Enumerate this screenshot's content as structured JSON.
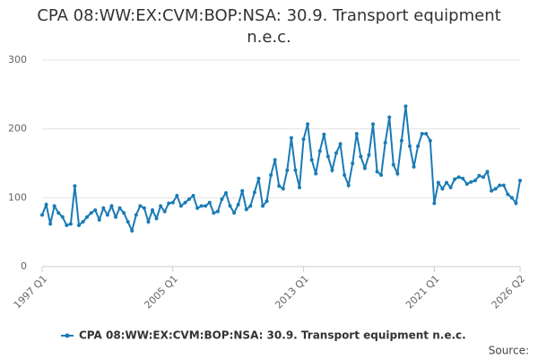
{
  "chart_data": {
    "type": "line",
    "title": "CPA 08:WW:EX:CVM:BOP:NSA: 30.9. Transport equipment n.e.c.",
    "source_label": "Source:",
    "categories": [
      "1997 Q1",
      null,
      null,
      null,
      null,
      null,
      null,
      null,
      null,
      null,
      null,
      null,
      null,
      null,
      null,
      null,
      null,
      null,
      null,
      null,
      null,
      null,
      null,
      null,
      null,
      null,
      null,
      null,
      null,
      null,
      null,
      null,
      "2005 Q1",
      null,
      null,
      null,
      null,
      null,
      null,
      null,
      null,
      null,
      null,
      null,
      null,
      null,
      null,
      null,
      null,
      null,
      null,
      null,
      null,
      null,
      null,
      null,
      null,
      null,
      null,
      null,
      null,
      null,
      null,
      null,
      "2013 Q1",
      null,
      null,
      null,
      null,
      null,
      null,
      null,
      null,
      null,
      null,
      null,
      null,
      null,
      null,
      null,
      null,
      null,
      null,
      null,
      null,
      null,
      null,
      null,
      null,
      null,
      null,
      null,
      null,
      null,
      null,
      null,
      "2021 Q1",
      null,
      null,
      null,
      null,
      null,
      null,
      null,
      null,
      null,
      null,
      null,
      null,
      null,
      null,
      null,
      null,
      null,
      null,
      null,
      null,
      "2026 Q2"
    ],
    "series": [
      {
        "name": "CPA 08:WW:EX:CVM:BOP:NSA: 30.9. Transport equipment n.e.c.",
        "color": "#1a7bb5",
        "values": [
          75,
          90,
          62,
          88,
          78,
          72,
          60,
          62,
          117,
          60,
          65,
          72,
          78,
          82,
          68,
          85,
          75,
          88,
          72,
          85,
          78,
          65,
          52,
          75,
          88,
          85,
          65,
          82,
          70,
          88,
          80,
          92,
          93,
          103,
          88,
          93,
          98,
          103,
          85,
          88,
          88,
          93,
          78,
          80,
          98,
          107,
          88,
          78,
          90,
          110,
          83,
          88,
          108,
          128,
          88,
          95,
          133,
          155,
          117,
          113,
          140,
          187,
          140,
          115,
          185,
          207,
          155,
          135,
          168,
          192,
          160,
          140,
          165,
          178,
          133,
          118,
          150,
          193,
          160,
          143,
          162,
          207,
          138,
          133,
          180,
          217,
          148,
          135,
          183,
          233,
          175,
          145,
          175,
          193,
          193,
          183,
          92,
          122,
          113,
          122,
          115,
          127,
          130,
          128,
          120,
          123,
          125,
          132,
          130,
          138,
          110,
          113,
          118,
          118,
          105,
          100,
          92,
          125
        ]
      }
    ],
    "ylim": [
      0,
      300
    ],
    "yticks": [
      0,
      100,
      200,
      300
    ],
    "grid": true
  }
}
